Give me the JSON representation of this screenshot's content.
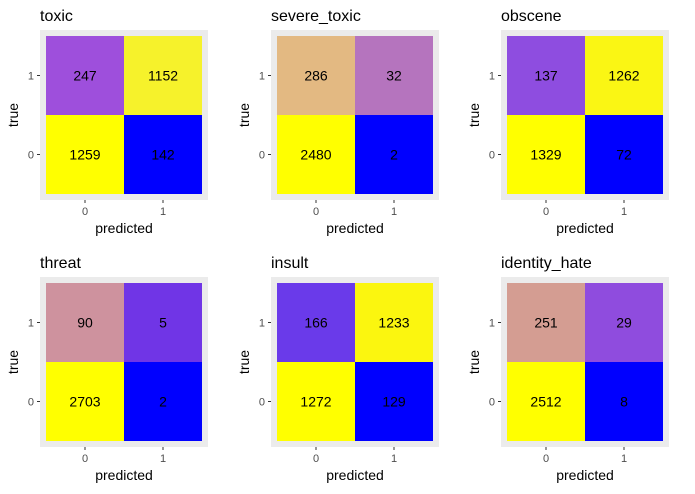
{
  "chart_data": [
    {
      "type": "heatmap",
      "title": "toxic",
      "xlabel": "predicted",
      "ylabel": "true",
      "x_ticks": [
        "0",
        "1"
      ],
      "y_ticks": [
        "0",
        "1"
      ],
      "cells": [
        {
          "true": "1",
          "predicted": "0",
          "value": 247,
          "color": "#9E4FDC"
        },
        {
          "true": "1",
          "predicted": "1",
          "value": 1152,
          "color": "#F6F22B"
        },
        {
          "true": "0",
          "predicted": "0",
          "value": 1259,
          "color": "#FFFF00"
        },
        {
          "true": "0",
          "predicted": "1",
          "value": 142,
          "color": "#0000FF"
        }
      ]
    },
    {
      "type": "heatmap",
      "title": "severe_toxic",
      "xlabel": "predicted",
      "ylabel": "true",
      "x_ticks": [
        "0",
        "1"
      ],
      "y_ticks": [
        "0",
        "1"
      ],
      "cells": [
        {
          "true": "1",
          "predicted": "0",
          "value": 286,
          "color": "#E3B982"
        },
        {
          "true": "1",
          "predicted": "1",
          "value": 32,
          "color": "#B574BE"
        },
        {
          "true": "0",
          "predicted": "0",
          "value": 2480,
          "color": "#FFFF00"
        },
        {
          "true": "0",
          "predicted": "1",
          "value": 2,
          "color": "#0000FF"
        }
      ]
    },
    {
      "type": "heatmap",
      "title": "obscene",
      "xlabel": "predicted",
      "ylabel": "true",
      "x_ticks": [
        "0",
        "1"
      ],
      "y_ticks": [
        "0",
        "1"
      ],
      "cells": [
        {
          "true": "1",
          "predicted": "0",
          "value": 137,
          "color": "#8E4DE0"
        },
        {
          "true": "1",
          "predicted": "1",
          "value": 1262,
          "color": "#FAF614"
        },
        {
          "true": "0",
          "predicted": "0",
          "value": 1329,
          "color": "#FFFF00"
        },
        {
          "true": "0",
          "predicted": "1",
          "value": 72,
          "color": "#0000FF"
        }
      ]
    },
    {
      "type": "heatmap",
      "title": "threat",
      "xlabel": "predicted",
      "ylabel": "true",
      "x_ticks": [
        "0",
        "1"
      ],
      "y_ticks": [
        "0",
        "1"
      ],
      "cells": [
        {
          "true": "1",
          "predicted": "0",
          "value": 90,
          "color": "#CE929E"
        },
        {
          "true": "1",
          "predicted": "1",
          "value": 5,
          "color": "#7035E6"
        },
        {
          "true": "0",
          "predicted": "0",
          "value": 2703,
          "color": "#FFFF00"
        },
        {
          "true": "0",
          "predicted": "1",
          "value": 2,
          "color": "#0000FF"
        }
      ]
    },
    {
      "type": "heatmap",
      "title": "insult",
      "xlabel": "predicted",
      "ylabel": "true",
      "x_ticks": [
        "0",
        "1"
      ],
      "y_ticks": [
        "0",
        "1"
      ],
      "cells": [
        {
          "true": "1",
          "predicted": "0",
          "value": 166,
          "color": "#6A3AEA"
        },
        {
          "true": "1",
          "predicted": "1",
          "value": 1233,
          "color": "#FBF60F"
        },
        {
          "true": "0",
          "predicted": "0",
          "value": 1272,
          "color": "#FFFF00"
        },
        {
          "true": "0",
          "predicted": "1",
          "value": 129,
          "color": "#0000FF"
        }
      ]
    },
    {
      "type": "heatmap",
      "title": "identity_hate",
      "xlabel": "predicted",
      "ylabel": "true",
      "x_ticks": [
        "0",
        "1"
      ],
      "y_ticks": [
        "0",
        "1"
      ],
      "cells": [
        {
          "true": "1",
          "predicted": "0",
          "value": 251,
          "color": "#D49D92"
        },
        {
          "true": "1",
          "predicted": "1",
          "value": 29,
          "color": "#8F4CDE"
        },
        {
          "true": "0",
          "predicted": "0",
          "value": 2512,
          "color": "#FFFF00"
        },
        {
          "true": "0",
          "predicted": "1",
          "value": 8,
          "color": "#0000FF"
        }
      ]
    }
  ],
  "style": {
    "panel_background": "#EBEBEB",
    "text_color": "#000000",
    "tick_color": "#4D4D4D"
  }
}
